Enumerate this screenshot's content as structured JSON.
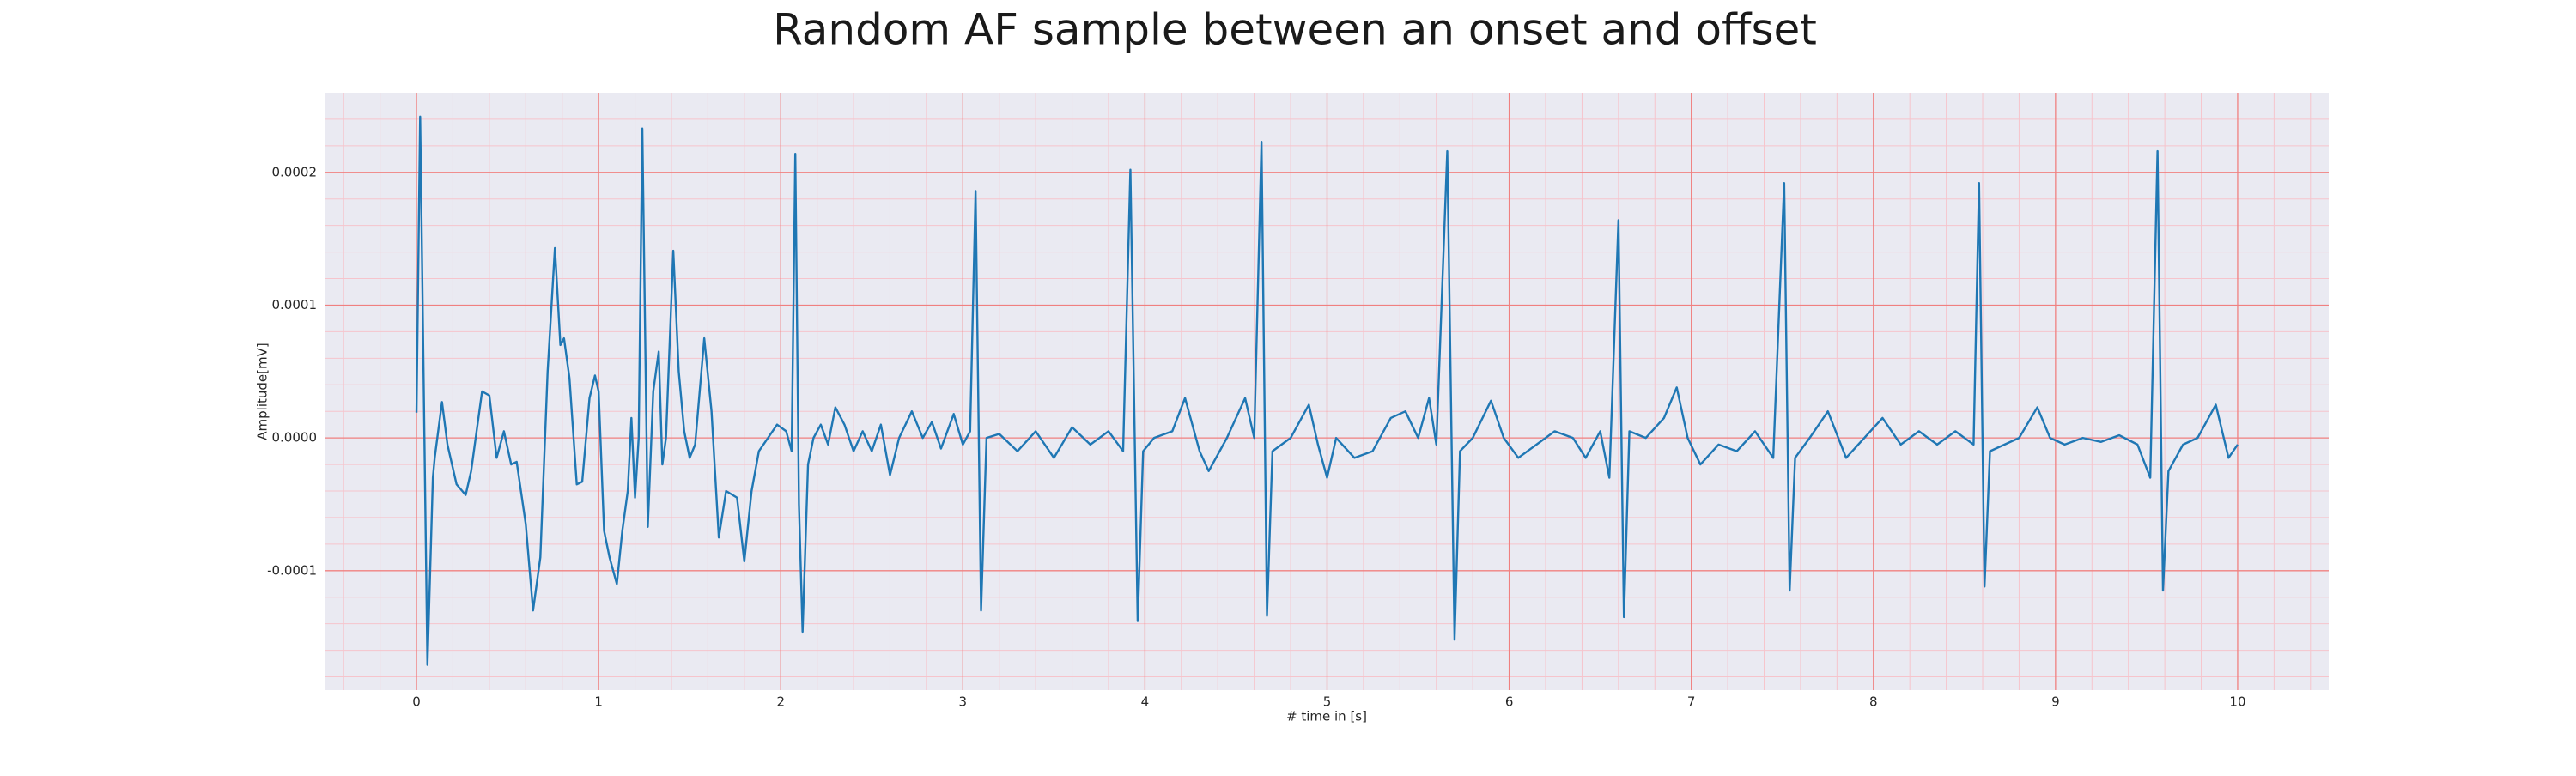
{
  "chart_data": {
    "type": "line",
    "title": "Random AF sample between an onset and offset",
    "xlabel": "# time in [s]",
    "ylabel": "Amplitude[mV]",
    "color": "#1f77b4",
    "grid": true,
    "grid_color": "#f08080",
    "minor_grid_color": "#f6c4cc",
    "background": "#eaeaf2",
    "xlim": [
      -0.5,
      10.5
    ],
    "ylim": [
      -0.00019,
      0.00026
    ],
    "xticks": [
      0,
      1,
      2,
      3,
      4,
      5,
      6,
      7,
      8,
      9,
      10
    ],
    "yticks": [
      -0.0001,
      {
        "value": 0,
        "label": "0.0000"
      },
      0.0001,
      0.0002
    ],
    "xminorticks": [
      -0.4,
      -0.2,
      0.2,
      0.4,
      0.6,
      0.8,
      1.2,
      1.4,
      1.6,
      1.8,
      2.2,
      2.4,
      2.6,
      2.8,
      3.2,
      3.4,
      3.6,
      3.8,
      4.2,
      4.4,
      4.6,
      4.8,
      5.2,
      5.4,
      5.6,
      5.8,
      6.2,
      6.4,
      6.6,
      6.8,
      7.2,
      7.4,
      7.6,
      7.8,
      8.2,
      8.4,
      8.6,
      8.8,
      9.2,
      9.4,
      9.6,
      9.8,
      10.2,
      10.4
    ],
    "yminorticks": [
      -0.00018,
      -0.00016,
      -0.00014,
      -0.00012,
      -8e-05,
      -6e-05,
      -4e-05,
      -2e-05,
      2e-05,
      4e-05,
      6e-05,
      8e-05,
      0.00012,
      0.00014,
      0.00016,
      0.00018,
      0.00022,
      0.00024
    ],
    "x": [
      0,
      0.02,
      0.06,
      0.09,
      0.1,
      0.14,
      0.17,
      0.22,
      0.27,
      0.3,
      0.36,
      0.4,
      0.44,
      0.48,
      0.52,
      0.55,
      0.6,
      0.64,
      0.68,
      0.72,
      0.76,
      0.79,
      0.81,
      0.84,
      0.88,
      0.91,
      0.95,
      0.98,
      1.0,
      1.03,
      1.06,
      1.1,
      1.13,
      1.16,
      1.18,
      1.2,
      1.22,
      1.24,
      1.27,
      1.3,
      1.33,
      1.35,
      1.37,
      1.41,
      1.44,
      1.47,
      1.5,
      1.53,
      1.58,
      1.62,
      1.66,
      1.7,
      1.76,
      1.8,
      1.84,
      1.88,
      1.93,
      1.98,
      2.03,
      2.06,
      2.08,
      2.1,
      2.12,
      2.15,
      2.18,
      2.22,
      2.26,
      2.3,
      2.35,
      2.4,
      2.45,
      2.5,
      2.55,
      2.6,
      2.65,
      2.72,
      2.78,
      2.83,
      2.88,
      2.95,
      3.0,
      3.04,
      3.07,
      3.1,
      3.13,
      3.2,
      3.3,
      3.4,
      3.5,
      3.6,
      3.7,
      3.8,
      3.88,
      3.92,
      3.96,
      3.99,
      4.05,
      4.15,
      4.22,
      4.3,
      4.35,
      4.45,
      4.55,
      4.6,
      4.64,
      4.67,
      4.7,
      4.8,
      4.9,
      4.95,
      5.0,
      5.05,
      5.15,
      5.25,
      5.35,
      5.43,
      5.5,
      5.56,
      5.6,
      5.66,
      5.7,
      5.73,
      5.8,
      5.9,
      5.97,
      6.05,
      6.15,
      6.25,
      6.35,
      6.42,
      6.5,
      6.55,
      6.6,
      6.63,
      6.66,
      6.75,
      6.85,
      6.92,
      6.98,
      7.05,
      7.15,
      7.25,
      7.35,
      7.45,
      7.51,
      7.54,
      7.57,
      7.65,
      7.75,
      7.85,
      7.95,
      8.05,
      8.15,
      8.25,
      8.35,
      8.45,
      8.55,
      8.58,
      8.61,
      8.64,
      8.72,
      8.8,
      8.9,
      8.97,
      9.05,
      9.15,
      9.25,
      9.35,
      9.45,
      9.52,
      9.56,
      9.59,
      9.62,
      9.7,
      9.78,
      9.88,
      9.95,
      10.0
    ],
    "values": [
      1.9e-05,
      0.000242,
      -0.000171,
      -3e-05,
      -1.5e-05,
      2.7e-05,
      -5e-06,
      -3.5e-05,
      -4.3e-05,
      -2.5e-05,
      3.5e-05,
      3.2e-05,
      -1.5e-05,
      5e-06,
      -2e-05,
      -1.8e-05,
      -6.5e-05,
      -0.00013,
      -9e-05,
      5e-05,
      0.000143,
      7e-05,
      7.5e-05,
      4.5e-05,
      -3.5e-05,
      -3.3e-05,
      3e-05,
      4.7e-05,
      3.5e-05,
      -7e-05,
      -9e-05,
      -0.00011,
      -7e-05,
      -4e-05,
      1.5e-05,
      -4.5e-05,
      0,
      0.000233,
      -6.7e-05,
      3.5e-05,
      6.5e-05,
      -2e-05,
      0,
      0.000141,
      5e-05,
      5e-06,
      -1.5e-05,
      -5e-06,
      7.5e-05,
      2e-05,
      -7.5e-05,
      -4e-05,
      -4.5e-05,
      -9.3e-05,
      -4e-05,
      -1e-05,
      0,
      1e-05,
      5e-06,
      -1e-05,
      0.000214,
      -5e-05,
      -0.000146,
      -2e-05,
      0,
      1e-05,
      -5e-06,
      2.3e-05,
      1e-05,
      -1e-05,
      5e-06,
      -1e-05,
      1e-05,
      -2.8e-05,
      0,
      2e-05,
      0,
      1.2e-05,
      -8e-06,
      1.8e-05,
      -5e-06,
      5e-06,
      0.000186,
      -0.00013,
      0,
      3e-06,
      -1e-05,
      5e-06,
      -1.5e-05,
      8e-06,
      -5e-06,
      5e-06,
      -1e-05,
      0.000202,
      -0.000138,
      -1e-05,
      0,
      5e-06,
      3e-05,
      -1e-05,
      -2.5e-05,
      0,
      3e-05,
      0,
      0.000223,
      -0.000134,
      -1e-05,
      0,
      2.5e-05,
      -5e-06,
      -3e-05,
      0,
      -1.5e-05,
      -1e-05,
      1.5e-05,
      2e-05,
      0,
      3e-05,
      -5e-06,
      0.000216,
      -0.000152,
      -1e-05,
      0,
      2.8e-05,
      0,
      -1.5e-05,
      -5e-06,
      5e-06,
      0,
      -1.5e-05,
      5e-06,
      -3e-05,
      0.000164,
      -0.000135,
      5e-06,
      0,
      1.5e-05,
      3.8e-05,
      0,
      -2e-05,
      -5e-06,
      -1e-05,
      5e-06,
      -1.5e-05,
      0.000192,
      -0.000115,
      -1.5e-05,
      0,
      2e-05,
      -1.5e-05,
      0,
      1.5e-05,
      -5e-06,
      5e-06,
      -5e-06,
      5e-06,
      -5e-06,
      0.000192,
      -0.000112,
      -1e-05,
      -5e-06,
      0,
      2.3e-05,
      0,
      -5e-06,
      0,
      -3e-06,
      2e-06,
      -5e-06,
      -3e-05,
      0.000216,
      -0.000115,
      -2.5e-05,
      -5e-06,
      0,
      2.5e-05,
      -1.5e-05,
      -5e-06
    ]
  }
}
